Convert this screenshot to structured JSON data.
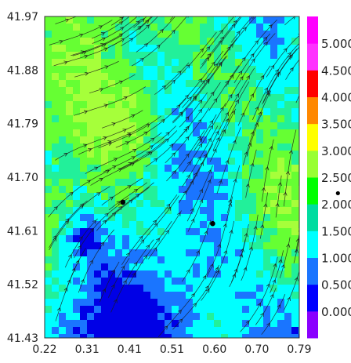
{
  "map": {
    "x_ticks": [
      "0.22",
      "0.31",
      "0.41",
      "0.51",
      "0.60",
      "0.70",
      "0.79"
    ],
    "y_ticks": [
      "41.97",
      "41.88",
      "41.79",
      "41.70",
      "41.61",
      "41.52",
      "41.43"
    ],
    "x_range": [
      0.22,
      0.79
    ],
    "y_range": [
      41.43,
      41.97
    ]
  },
  "colorbar": {
    "labels": [
      "0.000",
      "0.500",
      "1.000",
      "1.500",
      "2.000",
      "2.500",
      "3.000",
      "3.500",
      "4.000",
      "4.500",
      "5.000"
    ],
    "colors": [
      "#8a00ff",
      "#0000ff",
      "#1a75ff",
      "#00ffff",
      "#00dca0",
      "#00ff00",
      "#99ff33",
      "#ffff00",
      "#ff8800",
      "#ff0000",
      "#ff33ff",
      "#ff00ff"
    ],
    "marker": "•"
  },
  "markers": [
    {
      "name": "station-marker",
      "x": 0.395,
      "y": 41.658
    },
    {
      "name": "station-marker",
      "x": 0.596,
      "y": 41.622
    }
  ],
  "palette": {
    "low": "#1a75ff",
    "mid": "#00ffff",
    "high": "#66ff33",
    "stream": "#1a1a1a"
  }
}
